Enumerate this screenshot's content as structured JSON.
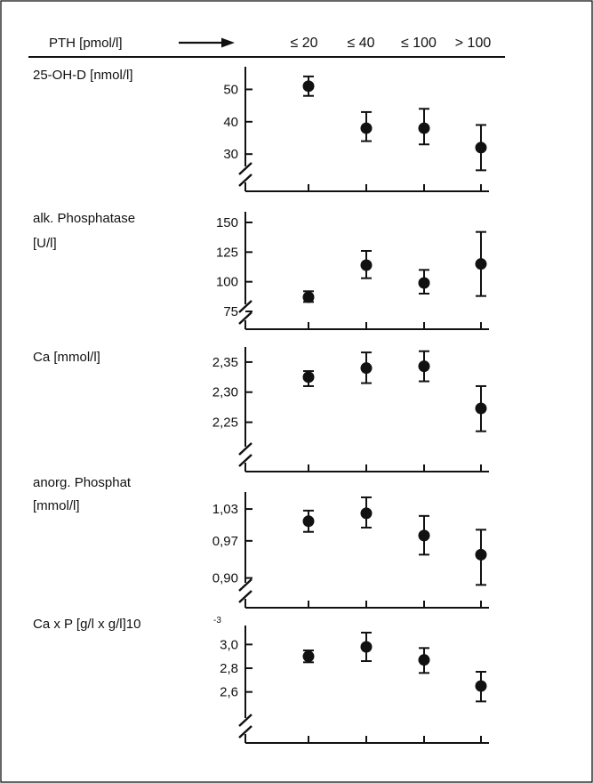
{
  "header": {
    "x_title": "PTH [pmol/l]",
    "categories": [
      "≤ 20",
      "≤ 40",
      "≤ 100",
      "> 100"
    ]
  },
  "style": {
    "ink": "#111111",
    "frame": "#000000",
    "background": "#ffffff"
  },
  "chart_data": [
    {
      "type": "scatter",
      "title_lines": [
        "25-OH-D [nmol/l]"
      ],
      "categories": [
        "≤ 20",
        "≤ 40",
        "≤ 100",
        "> 100"
      ],
      "values": [
        51,
        38,
        38,
        32
      ],
      "err_low": [
        48,
        34,
        33,
        25
      ],
      "err_high": [
        54,
        43,
        44,
        39
      ],
      "yticks": [
        30,
        40,
        50
      ],
      "ytick_labels": [
        "30",
        "40",
        "50"
      ],
      "ylim": [
        18.5,
        57
      ],
      "axis_break": true
    },
    {
      "type": "scatter",
      "title_lines": [
        "alk. Phosphatase",
        "[U/l]"
      ],
      "categories": [
        "≤ 20",
        "≤ 40",
        "≤ 100",
        "> 100"
      ],
      "values": [
        87,
        114,
        99,
        115
      ],
      "err_low": [
        83,
        103,
        90,
        88
      ],
      "err_high": [
        92,
        126,
        110,
        142
      ],
      "yticks": [
        75,
        100,
        125,
        150
      ],
      "ytick_labels": [
        "75",
        "100",
        "125",
        "150"
      ],
      "ylim": [
        60,
        159
      ],
      "axis_break": true
    },
    {
      "type": "scatter",
      "title_lines": [
        "Ca [mmol/l]"
      ],
      "categories": [
        "≤ 20",
        "≤ 40",
        "≤ 100",
        "> 100"
      ],
      "values": [
        2.325,
        2.34,
        2.343,
        2.273
      ],
      "err_low": [
        2.31,
        2.315,
        2.318,
        2.235
      ],
      "err_high": [
        2.335,
        2.366,
        2.368,
        2.31
      ],
      "yticks": [
        2.25,
        2.3,
        2.35
      ],
      "ytick_labels": [
        "2,25",
        "2,30",
        "2,35"
      ],
      "ylim": [
        2.168,
        2.375
      ],
      "axis_break": true
    },
    {
      "type": "scatter",
      "title_lines": [
        "anorg. Phosphat",
        "[mmol/l]"
      ],
      "categories": [
        "≤ 20",
        "≤ 40",
        "≤ 100",
        "> 100"
      ],
      "values": [
        1.007,
        1.022,
        0.98,
        0.944
      ],
      "err_low": [
        0.987,
        0.995,
        0.944,
        0.887
      ],
      "err_high": [
        1.027,
        1.052,
        1.017,
        0.991
      ],
      "yticks": [
        0.9,
        0.97,
        1.03
      ],
      "ytick_labels": [
        "0,90",
        "0,97",
        "1,03"
      ],
      "ylim": [
        0.844,
        1.062
      ],
      "axis_break": true
    },
    {
      "type": "scatter",
      "title_lines": [
        "Ca x P [g/l x g/l]10",
        "-3"
      ],
      "categories": [
        "≤ 20",
        "≤ 40",
        "≤ 100",
        "> 100"
      ],
      "values": [
        2.9,
        2.98,
        2.87,
        2.65
      ],
      "err_low": [
        2.85,
        2.86,
        2.76,
        2.52
      ],
      "err_high": [
        2.95,
        3.1,
        2.97,
        2.77
      ],
      "yticks": [
        2.6,
        2.8,
        3.0
      ],
      "ytick_labels": [
        "2,6",
        "2,8",
        "3,0"
      ],
      "ylim": [
        2.17,
        3.16
      ],
      "axis_break": true
    }
  ]
}
